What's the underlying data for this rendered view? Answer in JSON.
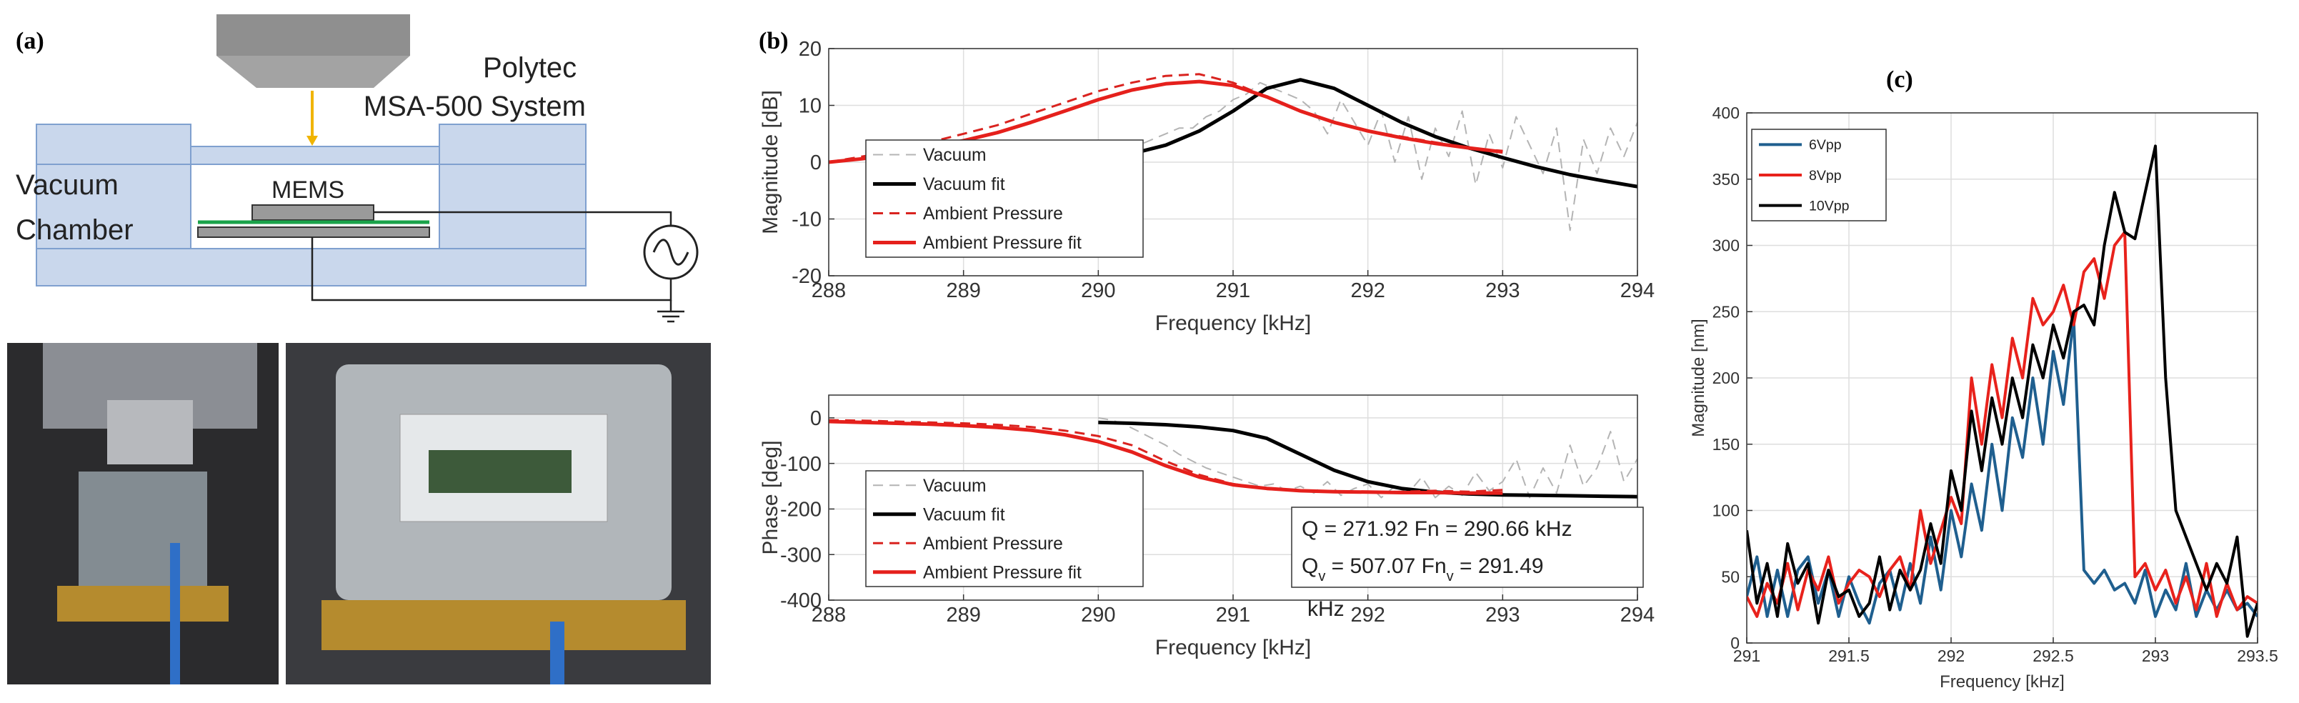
{
  "panel_labels": {
    "a": "(a)",
    "b": "(b)",
    "c": "(c)"
  },
  "diagram": {
    "system": [
      "Polytec",
      "MSA-500 System"
    ],
    "chamber": [
      "Vacuum",
      "Chamber"
    ],
    "device": "MEMS"
  },
  "chart_data": [
    {
      "type": "line",
      "xlabel": "Frequency [kHz]",
      "ylabel": "Magnitude [dB]",
      "xlim": [
        288,
        294
      ],
      "xticks": [
        288,
        289,
        290,
        291,
        292,
        293,
        294
      ],
      "ylim": [
        -20,
        20
      ],
      "yticks": [
        -20,
        -10,
        0,
        10,
        20
      ],
      "grid": true,
      "legend": "lower left",
      "series": [
        {
          "name": "Vacuum",
          "color": "#b4b4b4",
          "dashed": true,
          "width": 2,
          "x": [
            290,
            290.1,
            290.2,
            290.3,
            290.4,
            290.5,
            290.6,
            290.7,
            290.8,
            290.9,
            291,
            291.1,
            291.2,
            291.3,
            291.4,
            291.5,
            291.6,
            291.7,
            291.8,
            291.9,
            292,
            292.1,
            292.2,
            292.3,
            292.4,
            292.5,
            292.6,
            292.7,
            292.8,
            292.9,
            293,
            293.1,
            293.2,
            293.3,
            293.4,
            293.5,
            293.6,
            293.7,
            293.8,
            293.9,
            294
          ],
          "values": [
            0,
            1,
            2,
            3,
            4,
            5,
            6,
            6,
            8,
            9,
            11,
            12,
            14,
            13,
            12,
            11,
            9,
            5,
            11,
            7,
            3,
            9,
            0,
            8,
            -3,
            6,
            1,
            9,
            -4,
            5,
            -1,
            8,
            3,
            -2,
            6,
            -12,
            4,
            -2,
            6,
            1,
            7
          ]
        },
        {
          "name": "Vacuum fit",
          "color": "#000000",
          "dashed": false,
          "width": 5,
          "x": [
            290,
            290.25,
            290.5,
            290.75,
            291,
            291.25,
            291.5,
            291.75,
            292,
            292.25,
            292.5,
            292.75,
            293,
            293.25,
            293.5,
            293.75,
            294
          ],
          "values": [
            0.5,
            1.5,
            3,
            5.5,
            9,
            13,
            14.5,
            13,
            10,
            7,
            4.5,
            2.5,
            0.8,
            -0.8,
            -2.2,
            -3.3,
            -4.3
          ]
        },
        {
          "name": "Ambient Pressure",
          "color": "#d9231f",
          "dashed": true,
          "width": 3,
          "x": [
            288,
            288.25,
            288.5,
            288.75,
            289,
            289.25,
            289.5,
            289.75,
            290,
            290.25,
            290.5,
            290.75,
            291,
            291.25,
            291.5,
            291.75,
            292,
            292.25,
            292.5,
            292.75,
            293
          ],
          "values": [
            0,
            1,
            2,
            3.5,
            5,
            6.5,
            8.5,
            10.5,
            12.5,
            14,
            15.2,
            15.5,
            14,
            11.5,
            9,
            7,
            5.5,
            4.5,
            3.5,
            2.5,
            2
          ]
        },
        {
          "name": "Ambient Pressure fit",
          "color": "#e5201c",
          "dashed": false,
          "width": 5,
          "x": [
            288,
            288.25,
            288.5,
            288.75,
            289,
            289.25,
            289.5,
            289.75,
            290,
            290.25,
            290.5,
            290.75,
            291,
            291.25,
            291.5,
            291.75,
            292,
            292.25,
            292.5,
            292.75,
            293
          ],
          "values": [
            0,
            0.6,
            1.5,
            2.5,
            3.8,
            5.2,
            7,
            9,
            11,
            12.7,
            13.8,
            14.2,
            13.5,
            11.5,
            9,
            7,
            5.5,
            4.3,
            3.3,
            2.5,
            1.8
          ]
        }
      ]
    },
    {
      "type": "line",
      "xlabel": "Frequency [kHz]",
      "ylabel": "Phase [deg]",
      "xlim": [
        288,
        294
      ],
      "xticks": [
        288,
        289,
        290,
        291,
        292,
        293,
        294
      ],
      "ylim": [
        -400,
        50
      ],
      "yticks": [
        -400,
        -300,
        -200,
        -100,
        0
      ],
      "grid": true,
      "legend": "lower left",
      "annotation": [
        [
          {
            "text": "Q = 271.92 Fn = 290.66 kHz"
          }
        ],
        [
          {
            "text": "Q"
          },
          {
            "text": "v",
            "sub": true
          },
          {
            "text": " = 507.07 Fn"
          },
          {
            "text": "v",
            "sub": true
          },
          {
            "text": " = 291.49"
          }
        ]
      ],
      "annotation_overflow": "kHz",
      "series": [
        {
          "name": "Vacuum",
          "color": "#b4b4b4",
          "dashed": true,
          "width": 2,
          "x": [
            290,
            290.1,
            290.2,
            290.3,
            290.4,
            290.5,
            290.6,
            290.7,
            290.8,
            290.9,
            291,
            291.1,
            291.2,
            291.3,
            291.4,
            291.5,
            291.6,
            291.7,
            291.8,
            291.9,
            292,
            292.1,
            292.2,
            292.3,
            292.4,
            292.5,
            292.6,
            292.7,
            292.8,
            292.9,
            293,
            293.1,
            293.2,
            293.3,
            293.4,
            293.5,
            293.6,
            293.7,
            293.8,
            293.9,
            294
          ],
          "values": [
            0,
            -5,
            -15,
            -30,
            -45,
            -60,
            -80,
            -95,
            -110,
            -120,
            -130,
            -140,
            -150,
            -145,
            -160,
            -150,
            -165,
            -140,
            -170,
            -155,
            -145,
            -175,
            -150,
            -165,
            -130,
            -175,
            -150,
            -170,
            -120,
            -160,
            -140,
            -90,
            -175,
            -110,
            -165,
            -60,
            -150,
            -110,
            -30,
            -140,
            -90
          ]
        },
        {
          "name": "Vacuum fit",
          "color": "#000000",
          "dashed": false,
          "width": 5,
          "x": [
            290,
            290.25,
            290.5,
            290.75,
            291,
            291.25,
            291.5,
            291.75,
            292,
            292.25,
            292.5,
            292.75,
            293,
            293.25,
            293.5,
            293.75,
            294
          ],
          "values": [
            -10,
            -12,
            -15,
            -20,
            -28,
            -45,
            -80,
            -115,
            -140,
            -155,
            -163,
            -167,
            -169,
            -170,
            -171,
            -172,
            -173
          ]
        },
        {
          "name": "Ambient Pressure",
          "color": "#d9231f",
          "dashed": true,
          "width": 3,
          "x": [
            288,
            288.25,
            288.5,
            288.75,
            289,
            289.25,
            289.5,
            289.75,
            290,
            290.25,
            290.5,
            290.75,
            291,
            291.25,
            291.5,
            291.75,
            292,
            292.25,
            292.5,
            292.75,
            293
          ],
          "values": [
            -5,
            -6,
            -8,
            -10,
            -12,
            -15,
            -20,
            -28,
            -40,
            -60,
            -95,
            -125,
            -145,
            -155,
            -160,
            -162,
            -163,
            -162,
            -160,
            -162,
            -158
          ]
        },
        {
          "name": "Ambient Pressure fit",
          "color": "#e5201c",
          "dashed": false,
          "width": 5,
          "x": [
            288,
            288.25,
            288.5,
            288.75,
            289,
            289.25,
            289.5,
            289.75,
            290,
            290.25,
            290.5,
            290.75,
            291,
            291.25,
            291.5,
            291.75,
            292,
            292.25,
            292.5,
            292.75,
            293
          ],
          "values": [
            -8,
            -10,
            -12,
            -14,
            -17,
            -21,
            -27,
            -37,
            -52,
            -75,
            -105,
            -130,
            -147,
            -155,
            -160,
            -162,
            -163,
            -164,
            -164,
            -165,
            -165
          ]
        }
      ]
    },
    {
      "type": "line",
      "xlabel": "Frequency [kHz]",
      "ylabel": "Magnitude [nm]",
      "xlim": [
        291,
        293.5
      ],
      "xticks": [
        291,
        291.5,
        292,
        292.5,
        293,
        293.5
      ],
      "ylim": [
        0,
        400
      ],
      "yticks": [
        0,
        50,
        100,
        150,
        200,
        250,
        300,
        350,
        400
      ],
      "grid": true,
      "legend": "upper left",
      "series": [
        {
          "name": "6Vpp",
          "color": "#1f5f8f",
          "dashed": false,
          "width": 4,
          "x": [
            291,
            291.05,
            291.1,
            291.15,
            291.2,
            291.25,
            291.3,
            291.35,
            291.4,
            291.45,
            291.5,
            291.55,
            291.6,
            291.65,
            291.7,
            291.75,
            291.8,
            291.85,
            291.9,
            291.95,
            292,
            292.05,
            292.1,
            292.15,
            292.2,
            292.25,
            292.3,
            292.35,
            292.4,
            292.45,
            292.5,
            292.55,
            292.6,
            292.65,
            292.7,
            292.75,
            292.8,
            292.85,
            292.9,
            292.95,
            293,
            293.05,
            293.1,
            293.15,
            293.2,
            293.25,
            293.3,
            293.35,
            293.4,
            293.45,
            293.5
          ],
          "values": [
            35,
            65,
            20,
            55,
            20,
            55,
            65,
            30,
            55,
            20,
            50,
            30,
            15,
            45,
            55,
            25,
            60,
            30,
            80,
            40,
            100,
            65,
            120,
            85,
            150,
            100,
            170,
            140,
            200,
            150,
            220,
            180,
            245,
            55,
            45,
            55,
            40,
            45,
            30,
            55,
            20,
            40,
            25,
            60,
            20,
            40,
            25,
            40,
            25,
            30,
            20
          ]
        },
        {
          "name": "8Vpp",
          "color": "#e8221c",
          "dashed": false,
          "width": 4,
          "x": [
            291,
            291.05,
            291.1,
            291.15,
            291.2,
            291.25,
            291.3,
            291.35,
            291.4,
            291.45,
            291.5,
            291.55,
            291.6,
            291.65,
            291.7,
            291.75,
            291.8,
            291.85,
            291.9,
            291.95,
            292,
            292.05,
            292.1,
            292.15,
            292.2,
            292.25,
            292.3,
            292.35,
            292.4,
            292.45,
            292.5,
            292.55,
            292.6,
            292.65,
            292.7,
            292.75,
            292.8,
            292.85,
            292.9,
            292.95,
            293,
            293.05,
            293.1,
            293.15,
            293.2,
            293.25,
            293.3,
            293.35,
            293.4,
            293.45,
            293.5
          ],
          "values": [
            35,
            20,
            45,
            30,
            60,
            25,
            55,
            40,
            65,
            30,
            45,
            55,
            50,
            35,
            55,
            65,
            40,
            100,
            60,
            85,
            110,
            90,
            200,
            150,
            210,
            170,
            230,
            200,
            260,
            240,
            250,
            270,
            240,
            280,
            290,
            260,
            300,
            310,
            50,
            60,
            40,
            55,
            30,
            50,
            25,
            60,
            20,
            45,
            25,
            35,
            30
          ]
        },
        {
          "name": "10Vpp",
          "color": "#000000",
          "dashed": false,
          "width": 4,
          "x": [
            291,
            291.05,
            291.1,
            291.15,
            291.2,
            291.25,
            291.3,
            291.35,
            291.4,
            291.45,
            291.5,
            291.55,
            291.6,
            291.65,
            291.7,
            291.75,
            291.8,
            291.85,
            291.9,
            291.95,
            292,
            292.05,
            292.1,
            292.15,
            292.2,
            292.25,
            292.3,
            292.35,
            292.4,
            292.45,
            292.5,
            292.55,
            292.6,
            292.65,
            292.7,
            292.75,
            292.8,
            292.85,
            292.9,
            292.95,
            293,
            293.05,
            293.1,
            293.15,
            293.2,
            293.25,
            293.3,
            293.35,
            293.4,
            293.45,
            293.5
          ],
          "values": [
            85,
            30,
            60,
            20,
            75,
            45,
            60,
            15,
            55,
            35,
            40,
            20,
            30,
            65,
            25,
            55,
            40,
            55,
            90,
            60,
            130,
            100,
            175,
            130,
            185,
            150,
            200,
            170,
            225,
            200,
            240,
            215,
            250,
            255,
            240,
            300,
            340,
            310,
            305,
            340,
            375,
            200,
            100,
            80,
            60,
            40,
            60,
            45,
            80,
            5,
            30
          ]
        }
      ]
    }
  ]
}
